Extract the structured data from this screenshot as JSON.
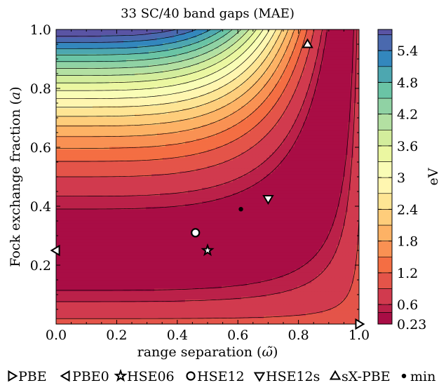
{
  "chart_data": {
    "type": "heatmap",
    "title": "33 SC/40 band gaps (MAE)",
    "xlabel": "range separation (",
    "xlabel_symbol": "ω̃",
    "xlabel_close": ")",
    "ylabel": "Fock exchange fraction (",
    "ylabel_symbol": "a",
    "ylabel_close": ")",
    "xlim": [
      0.0,
      1.0
    ],
    "ylim": [
      0.0,
      1.0
    ],
    "x_ticks": [
      0.0,
      0.2,
      0.4,
      0.6,
      0.8,
      1.0
    ],
    "x_tick_labels": [
      "0.0",
      "0.2",
      "0.4",
      "0.6",
      "0.8",
      "1.0"
    ],
    "y_ticks": [
      0.2,
      0.4,
      0.6,
      0.8,
      1.0
    ],
    "y_tick_labels": [
      "0.2",
      "0.4",
      "0.6",
      "0.8",
      "1.0"
    ],
    "colorbar": {
      "label": "eV",
      "min": 0.23,
      "max": 5.8,
      "ticks": [
        0.23,
        0.6,
        1.2,
        1.8,
        2.4,
        3.0,
        3.6,
        4.2,
        4.8,
        5.4
      ],
      "tick_labels": [
        "0.23",
        "0.6",
        "1.2",
        "1.8",
        "2.4",
        "3",
        "3.6",
        "4.2",
        "4.8",
        "5.4"
      ],
      "colormap": "Spectral_r"
    },
    "contour_levels": [
      0.23,
      0.45,
      0.6,
      0.9,
      1.2,
      1.5,
      1.8,
      2.1,
      2.4,
      2.7,
      3.0,
      3.3,
      3.6,
      3.9,
      4.2,
      4.5,
      4.8,
      5.1,
      5.4,
      5.7
    ],
    "points": [
      {
        "name": "PBE",
        "marker": "triangle-right",
        "x": 1.0,
        "y": 0.0
      },
      {
        "name": "PBE0",
        "marker": "triangle-left",
        "x": 0.0,
        "y": 0.25
      },
      {
        "name": "HSE06",
        "marker": "star",
        "x": 0.5,
        "y": 0.25
      },
      {
        "name": "HSE12",
        "marker": "circle",
        "x": 0.46,
        "y": 0.31
      },
      {
        "name": "HSE12s",
        "marker": "triangle-down",
        "x": 0.7,
        "y": 0.425
      },
      {
        "name": "sX-PBE",
        "marker": "triangle-up",
        "x": 0.83,
        "y": 0.95
      },
      {
        "name": "min",
        "marker": "dot",
        "x": 0.61,
        "y": 0.39
      }
    ],
    "legend_position": "bottom"
  }
}
